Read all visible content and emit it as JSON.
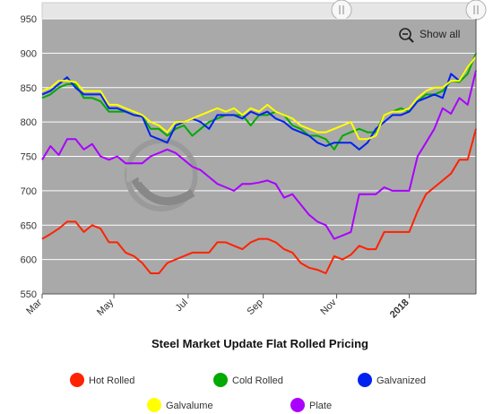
{
  "chart_data": {
    "type": "line",
    "title": "Steel Market Update Flat Rolled Pricing",
    "xlabel": "",
    "ylabel": "",
    "ylim": [
      550,
      950
    ],
    "yticks": [
      550,
      600,
      650,
      700,
      750,
      800,
      850,
      900,
      950
    ],
    "xticks": [
      {
        "label": "Mar",
        "index": 0,
        "bold": false
      },
      {
        "label": "May",
        "index": 8.6,
        "bold": false
      },
      {
        "label": "Jul",
        "index": 17.5,
        "bold": false
      },
      {
        "label": "Sep",
        "index": 26.5,
        "bold": false
      },
      {
        "label": "Nov",
        "index": 35.3,
        "bold": false
      },
      {
        "label": "2018",
        "index": 44.0,
        "bold": true
      }
    ],
    "x_count": 53,
    "grid": true,
    "legend_position": "bottom",
    "watermark": "STEEL MARKET UPDATE",
    "show_all_label": "Show all",
    "series": [
      {
        "name": "Hot Rolled",
        "color": "#ff2200",
        "values": [
          630,
          637,
          645,
          655,
          655,
          640,
          650,
          645,
          625,
          625,
          610,
          605,
          595,
          580,
          580,
          595,
          600,
          605,
          610,
          610,
          610,
          625,
          625,
          620,
          615,
          625,
          630,
          630,
          625,
          615,
          610,
          595,
          588,
          585,
          580,
          605,
          600,
          607,
          620,
          615,
          615,
          640,
          640,
          640,
          640,
          670,
          695,
          705,
          715,
          725,
          745,
          745,
          790
        ]
      },
      {
        "name": "Cold Rolled",
        "color": "#00aa00",
        "values": [
          835,
          840,
          850,
          855,
          855,
          835,
          835,
          830,
          815,
          815,
          815,
          810,
          808,
          790,
          790,
          780,
          790,
          795,
          780,
          790,
          800,
          805,
          810,
          810,
          810,
          795,
          810,
          810,
          815,
          810,
          795,
          790,
          780,
          780,
          775,
          760,
          780,
          785,
          790,
          785,
          785,
          810,
          815,
          820,
          815,
          830,
          840,
          840,
          845,
          860,
          858,
          870,
          900
        ]
      },
      {
        "name": "Galvanized",
        "color": "#0022ee",
        "values": [
          840,
          845,
          855,
          865,
          850,
          840,
          840,
          840,
          820,
          820,
          815,
          810,
          808,
          780,
          775,
          770,
          795,
          800,
          805,
          800,
          790,
          810,
          810,
          810,
          805,
          815,
          810,
          815,
          805,
          800,
          790,
          785,
          780,
          770,
          765,
          770,
          770,
          770,
          760,
          770,
          790,
          800,
          810,
          810,
          815,
          830,
          835,
          840,
          835,
          870,
          860,
          880,
          895
        ]
      },
      {
        "name": "Galvalume",
        "color": "#ffff00",
        "values": [
          845,
          850,
          860,
          860,
          858,
          845,
          845,
          845,
          825,
          825,
          820,
          815,
          810,
          800,
          795,
          785,
          800,
          800,
          805,
          810,
          815,
          820,
          815,
          820,
          810,
          820,
          815,
          825,
          815,
          810,
          805,
          795,
          790,
          785,
          785,
          790,
          795,
          800,
          775,
          775,
          780,
          810,
          815,
          815,
          820,
          835,
          845,
          850,
          850,
          860,
          860,
          880,
          895
        ]
      },
      {
        "name": "Plate",
        "color": "#aa00ff",
        "values": [
          745,
          765,
          752,
          775,
          775,
          760,
          768,
          750,
          745,
          750,
          740,
          740,
          740,
          750,
          755,
          760,
          755,
          745,
          735,
          730,
          720,
          710,
          705,
          700,
          710,
          710,
          712,
          715,
          710,
          690,
          695,
          680,
          665,
          655,
          650,
          630,
          635,
          640,
          695,
          695,
          695,
          705,
          700,
          700,
          700,
          750,
          770,
          790,
          820,
          812,
          835,
          825,
          875
        ]
      }
    ]
  }
}
